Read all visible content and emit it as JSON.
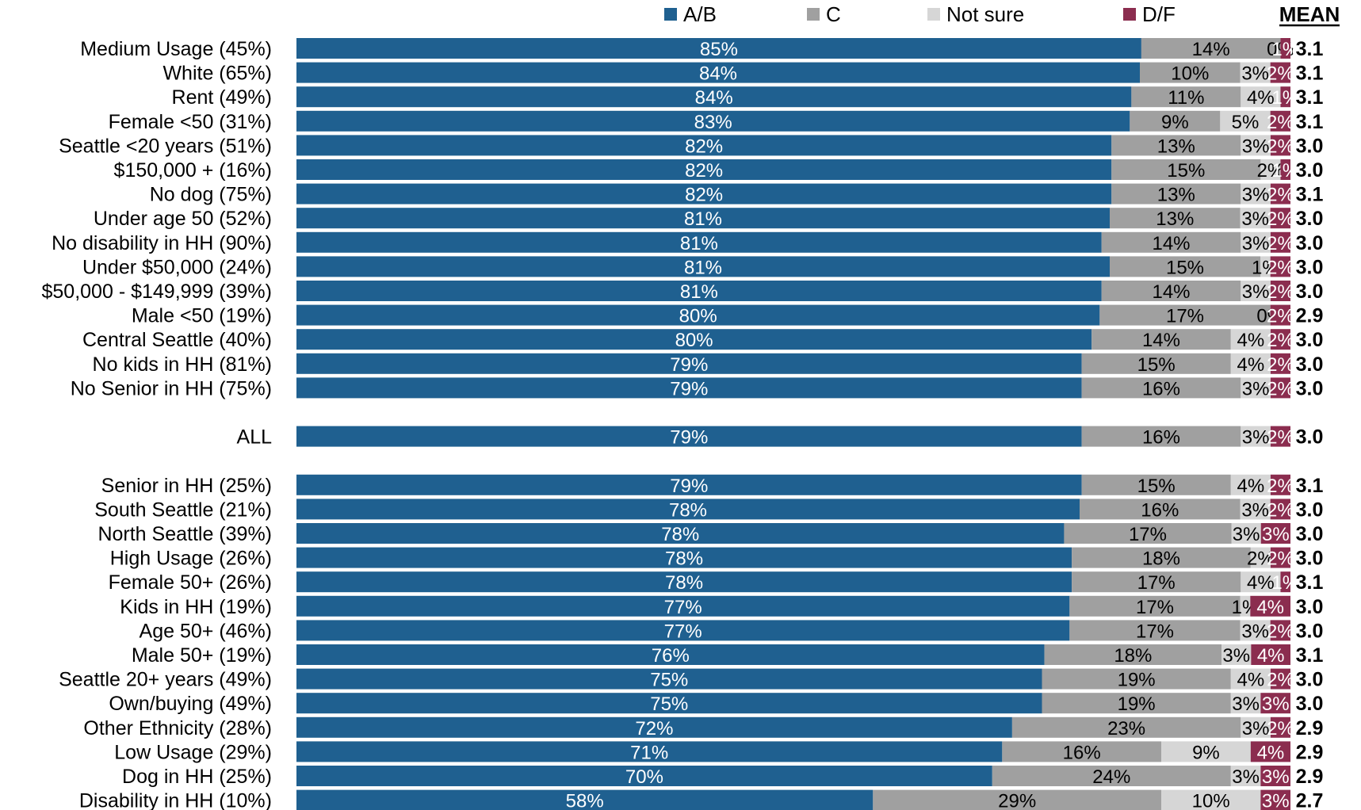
{
  "chart_data": {
    "type": "bar",
    "orientation": "horizontal",
    "stacked": true,
    "legend": {
      "placement": "top",
      "items": [
        {
          "name": "A/B",
          "color": "#1F6090"
        },
        {
          "name": "C",
          "color": "#A0A0A0"
        },
        {
          "name": "Not sure",
          "color": "#D6D6D6"
        },
        {
          "name": "D/F",
          "color": "#8B2D4F"
        }
      ]
    },
    "mean_header": "MEAN",
    "rows": [
      {
        "label": "Medium Usage (45%)",
        "values": [
          85,
          14,
          0,
          1
        ],
        "labels": [
          "85%",
          "14%",
          "0%",
          "1%"
        ],
        "mean": "3.1"
      },
      {
        "label": "White (65%)",
        "values": [
          84,
          10,
          3,
          2
        ],
        "labels": [
          "84%",
          "10%",
          "3%",
          "2%"
        ],
        "mean": "3.1"
      },
      {
        "label": "Rent (49%)",
        "values": [
          84,
          11,
          4,
          1
        ],
        "labels": [
          "84%",
          "11%",
          "4%",
          "1%"
        ],
        "mean": "3.1"
      },
      {
        "label": "Female <50 (31%)",
        "values": [
          83,
          9,
          5,
          2
        ],
        "labels": [
          "83%",
          "9%",
          "5%",
          "2%"
        ],
        "mean": "3.1"
      },
      {
        "label": "Seattle <20 years (51%)",
        "values": [
          82,
          13,
          3,
          2
        ],
        "labels": [
          "82%",
          "13%",
          "3%",
          "2%"
        ],
        "mean": "3.0"
      },
      {
        "label": "$150,000 + (16%)",
        "values": [
          82,
          15,
          2,
          1
        ],
        "labels": [
          "82%",
          "15%",
          "2%",
          "1%"
        ],
        "mean": "3.0"
      },
      {
        "label": "No dog (75%)",
        "values": [
          82,
          13,
          3,
          2
        ],
        "labels": [
          "82%",
          "13%",
          "3%",
          "2%"
        ],
        "mean": "3.1"
      },
      {
        "label": "Under age 50 (52%)",
        "values": [
          81,
          13,
          3,
          2
        ],
        "labels": [
          "81%",
          "13%",
          "3%",
          "2%"
        ],
        "mean": "3.0"
      },
      {
        "label": "No disability in HH (90%)",
        "values": [
          81,
          14,
          3,
          2
        ],
        "labels": [
          "81%",
          "14%",
          "3%",
          "2%"
        ],
        "mean": "3.0"
      },
      {
        "label": "Under $50,000 (24%)",
        "values": [
          81,
          15,
          1,
          2
        ],
        "labels": [
          "81%",
          "15%",
          "1%",
          "2%"
        ],
        "mean": "3.0"
      },
      {
        "label": "$50,000 - $149,999 (39%)",
        "values": [
          81,
          14,
          3,
          2
        ],
        "labels": [
          "81%",
          "14%",
          "3%",
          "2%"
        ],
        "mean": "3.0"
      },
      {
        "label": "Male <50 (19%)",
        "values": [
          80,
          17,
          0,
          2
        ],
        "labels": [
          "80%",
          "17%",
          "0%",
          "2%"
        ],
        "mean": "2.9"
      },
      {
        "label": "Central Seattle (40%)",
        "values": [
          80,
          14,
          4,
          2
        ],
        "labels": [
          "80%",
          "14%",
          "4%",
          "2%"
        ],
        "mean": "3.0"
      },
      {
        "label": "No kids in HH (81%)",
        "values": [
          79,
          15,
          4,
          2
        ],
        "labels": [
          "79%",
          "15%",
          "4%",
          "2%"
        ],
        "mean": "3.0"
      },
      {
        "label": "No Senior in HH (75%)",
        "values": [
          79,
          16,
          3,
          2
        ],
        "labels": [
          "79%",
          "16%",
          "3%",
          "2%"
        ],
        "mean": "3.0"
      },
      {
        "spacer": true
      },
      {
        "label": "ALL",
        "values": [
          79,
          16,
          3,
          2
        ],
        "labels": [
          "79%",
          "16%",
          "3%",
          "2%"
        ],
        "mean": "3.0"
      },
      {
        "spacer": true
      },
      {
        "label": "Senior in HH (25%)",
        "values": [
          79,
          15,
          4,
          2
        ],
        "labels": [
          "79%",
          "15%",
          "4%",
          "2%"
        ],
        "mean": "3.1"
      },
      {
        "label": "South Seattle (21%)",
        "values": [
          78,
          16,
          3,
          2
        ],
        "labels": [
          "78%",
          "16%",
          "3%",
          "2%"
        ],
        "mean": "3.0"
      },
      {
        "label": "North Seattle (39%)",
        "values": [
          78,
          17,
          3,
          3
        ],
        "labels": [
          "78%",
          "17%",
          "3%",
          "3%"
        ],
        "mean": "3.0"
      },
      {
        "label": "High Usage (26%)",
        "values": [
          78,
          18,
          2,
          2
        ],
        "labels": [
          "78%",
          "18%",
          "2%",
          "2%"
        ],
        "mean": "3.0"
      },
      {
        "label": "Female 50+ (26%)",
        "values": [
          78,
          17,
          4,
          1
        ],
        "labels": [
          "78%",
          "17%",
          "4%",
          "1%"
        ],
        "mean": "3.1"
      },
      {
        "label": "Kids in HH (19%)",
        "values": [
          77,
          17,
          1,
          4
        ],
        "labels": [
          "77%",
          "17%",
          "1%",
          "4%"
        ],
        "mean": "3.0"
      },
      {
        "label": "Age 50+ (46%)",
        "values": [
          77,
          17,
          3,
          2
        ],
        "labels": [
          "77%",
          "17%",
          "3%",
          "2%"
        ],
        "mean": "3.0"
      },
      {
        "label": "Male 50+ (19%)",
        "values": [
          76,
          18,
          3,
          4
        ],
        "labels": [
          "76%",
          "18%",
          "3%",
          "4%"
        ],
        "mean": "3.1"
      },
      {
        "label": "Seattle 20+ years (49%)",
        "values": [
          75,
          19,
          4,
          2
        ],
        "labels": [
          "75%",
          "19%",
          "4%",
          "2%"
        ],
        "mean": "3.0"
      },
      {
        "label": "Own/buying (49%)",
        "values": [
          75,
          19,
          3,
          3
        ],
        "labels": [
          "75%",
          "19%",
          "3%",
          "3%"
        ],
        "mean": "3.0"
      },
      {
        "label": "Other Ethnicity (28%)",
        "values": [
          72,
          23,
          3,
          2
        ],
        "labels": [
          "72%",
          "23%",
          "3%",
          "2%"
        ],
        "mean": "2.9"
      },
      {
        "label": "Low Usage (29%)",
        "values": [
          71,
          16,
          9,
          4
        ],
        "labels": [
          "71%",
          "16%",
          "9%",
          "4%"
        ],
        "mean": "2.9"
      },
      {
        "label": "Dog in HH (25%)",
        "values": [
          70,
          24,
          3,
          3
        ],
        "labels": [
          "70%",
          "24%",
          "3%",
          "3%"
        ],
        "mean": "2.9"
      },
      {
        "label": "Disability in HH (10%)",
        "values": [
          58,
          29,
          10,
          3
        ],
        "labels": [
          "58%",
          "29%",
          "10%",
          "3%"
        ],
        "mean": "2.7"
      }
    ]
  }
}
